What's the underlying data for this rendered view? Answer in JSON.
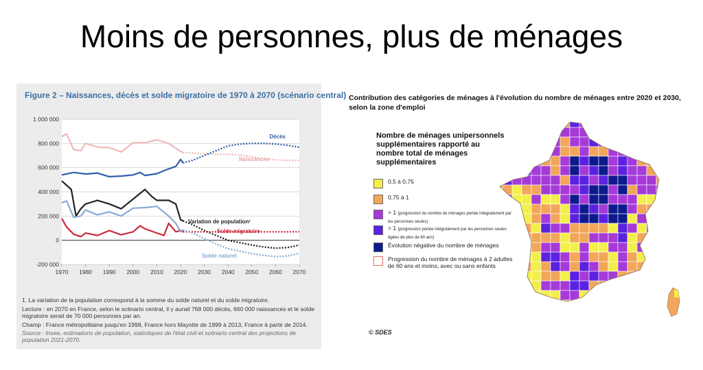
{
  "slide": {
    "title": "Moins de personnes, plus de ménages"
  },
  "left_figure": {
    "title": "Figure 2 – Naissances, décès et solde migratoire de 1970 à 2070 (scénario central)",
    "notes": [
      "1. La variation de la population correspond à la somme du solde naturel et du solde migratoire.",
      "Lecture : en 2070 en France, selon le scénario central, il y aurait 768 000 décès, 660 000 naissances et le solde migratoire serait de 70 000 personnes par an.",
      "Champ : France métropolitaine jusqu'en 1998, France hors Mayotte de 1999 à 2013, France à partir de 2014.",
      "Source : Insee, estimations de population, statistiques de l'état civil et scénario central des projections de population 2021-2070."
    ]
  },
  "chart_data": {
    "type": "line",
    "title": "Figure 2 – Naissances, décès et solde migratoire de 1970 à 2070 (scénario central)",
    "xlim": [
      1970,
      2070
    ],
    "ylim": [
      -200000,
      1000000
    ],
    "x_ticks": [
      "1970",
      "1980",
      "1990",
      "2000",
      "2010",
      "2020",
      "2030",
      "2040",
      "2050",
      "2060",
      "2070"
    ],
    "y_ticks": [
      "1 000 000",
      "800 000",
      "600 000",
      "400 000",
      "200 000",
      "0",
      "-200 000"
    ],
    "y_tick_values": [
      1000000,
      800000,
      600000,
      400000,
      200000,
      0,
      -200000
    ],
    "historical_until": 2021,
    "grid": true,
    "series": [
      {
        "name": "Décès",
        "color": "#2f5ea8",
        "x": [
          1970,
          1975,
          1980,
          1985,
          1990,
          1995,
          2000,
          2003,
          2005,
          2010,
          2015,
          2018,
          2020,
          2021,
          2025,
          2030,
          2035,
          2040,
          2045,
          2050,
          2055,
          2060,
          2065,
          2070
        ],
        "y": [
          540000,
          560000,
          548000,
          555000,
          525000,
          530000,
          540000,
          560000,
          535000,
          550000,
          590000,
          610000,
          668000,
          640000,
          660000,
          700000,
          740000,
          780000,
          795000,
          800000,
          800000,
          795000,
          785000,
          768000
        ]
      },
      {
        "name": "Naissances",
        "color": "#f0b8b8",
        "x": [
          1970,
          1972,
          1975,
          1978,
          1980,
          1985,
          1990,
          1995,
          2000,
          2005,
          2010,
          2015,
          2020,
          2021,
          2025,
          2030,
          2035,
          2040,
          2045,
          2050,
          2055,
          2060,
          2065,
          2070
        ],
        "y": [
          855000,
          880000,
          750000,
          740000,
          800000,
          770000,
          765000,
          730000,
          805000,
          805000,
          830000,
          800000,
          735000,
          725000,
          720000,
          715000,
          710000,
          710000,
          705000,
          690000,
          675000,
          665000,
          660000,
          660000
        ]
      },
      {
        "name": "Variation de population¹",
        "color": "#222222",
        "x": [
          1970,
          1974,
          1976,
          1978,
          1980,
          1985,
          1990,
          1995,
          2000,
          2005,
          2008,
          2010,
          2015,
          2018,
          2020,
          2021,
          2025,
          2030,
          2035,
          2040,
          2045,
          2050,
          2055,
          2060,
          2065,
          2070
        ],
        "y": [
          490000,
          420000,
          200000,
          260000,
          300000,
          330000,
          300000,
          260000,
          340000,
          420000,
          360000,
          330000,
          330000,
          300000,
          170000,
          160000,
          130000,
          80000,
          40000,
          0,
          -20000,
          -40000,
          -55000,
          -65000,
          -60000,
          -40000
        ]
      },
      {
        "name": "Solde migratoire",
        "color": "#c8283c",
        "x": [
          1970,
          1972,
          1975,
          1978,
          1980,
          1985,
          1990,
          1995,
          2000,
          2003,
          2005,
          2010,
          2013,
          2015,
          2018,
          2020,
          2021,
          2030,
          2040,
          2050,
          2060,
          2070
        ],
        "y": [
          180000,
          110000,
          50000,
          30000,
          60000,
          40000,
          80000,
          45000,
          70000,
          120000,
          95000,
          60000,
          40000,
          140000,
          70000,
          80000,
          70000,
          70000,
          70000,
          70000,
          70000,
          70000
        ]
      },
      {
        "name": "Solde naturel",
        "color": "#86aad6",
        "x": [
          1970,
          1972,
          1975,
          1978,
          1980,
          1985,
          1990,
          1995,
          2000,
          2005,
          2010,
          2015,
          2018,
          2020,
          2021,
          2025,
          2030,
          2035,
          2040,
          2045,
          2050,
          2055,
          2060,
          2065,
          2070
        ],
        "y": [
          310000,
          325000,
          190000,
          200000,
          250000,
          210000,
          235000,
          200000,
          265000,
          270000,
          280000,
          200000,
          140000,
          70000,
          85000,
          60000,
          15000,
          -30000,
          -70000,
          -90000,
          -110000,
          -125000,
          -135000,
          -130000,
          -108000
        ]
      }
    ]
  },
  "map": {
    "title": "Contribution des catégories de ménages à l'évolution du nombre de ménages entre 2020 et 2030, selon la zone d'emploi",
    "legend_title": "Nombre de ménages unipersonnels supplémentaires rapporté au nombre total de ménages supplémentaires",
    "legend": [
      {
        "label": "0,5 à 0,75",
        "note": "",
        "color": "#f3ef4a"
      },
      {
        "label": "0,75 à 1",
        "note": "",
        "color": "#f2a65a"
      },
      {
        "label": "> 1",
        "note": "(progression du nombre de ménages portée intégralement par les personnes seules)",
        "color": "#a63ad8"
      },
      {
        "label": "> 1",
        "note": "(progression portée intégralement par les personnes seules âgées de plus de 60 ans)",
        "color": "#5a22e0"
      },
      {
        "label": "Évolution négative du nombre de ménages",
        "note": "",
        "color": "#0d1a8c"
      },
      {
        "label": "Progression du nombre de ménages à 2 adultes de 60 ans et moins, avec ou sans enfants",
        "note": "",
        "color": "#ffffff"
      }
    ],
    "credit": "© SDES"
  }
}
